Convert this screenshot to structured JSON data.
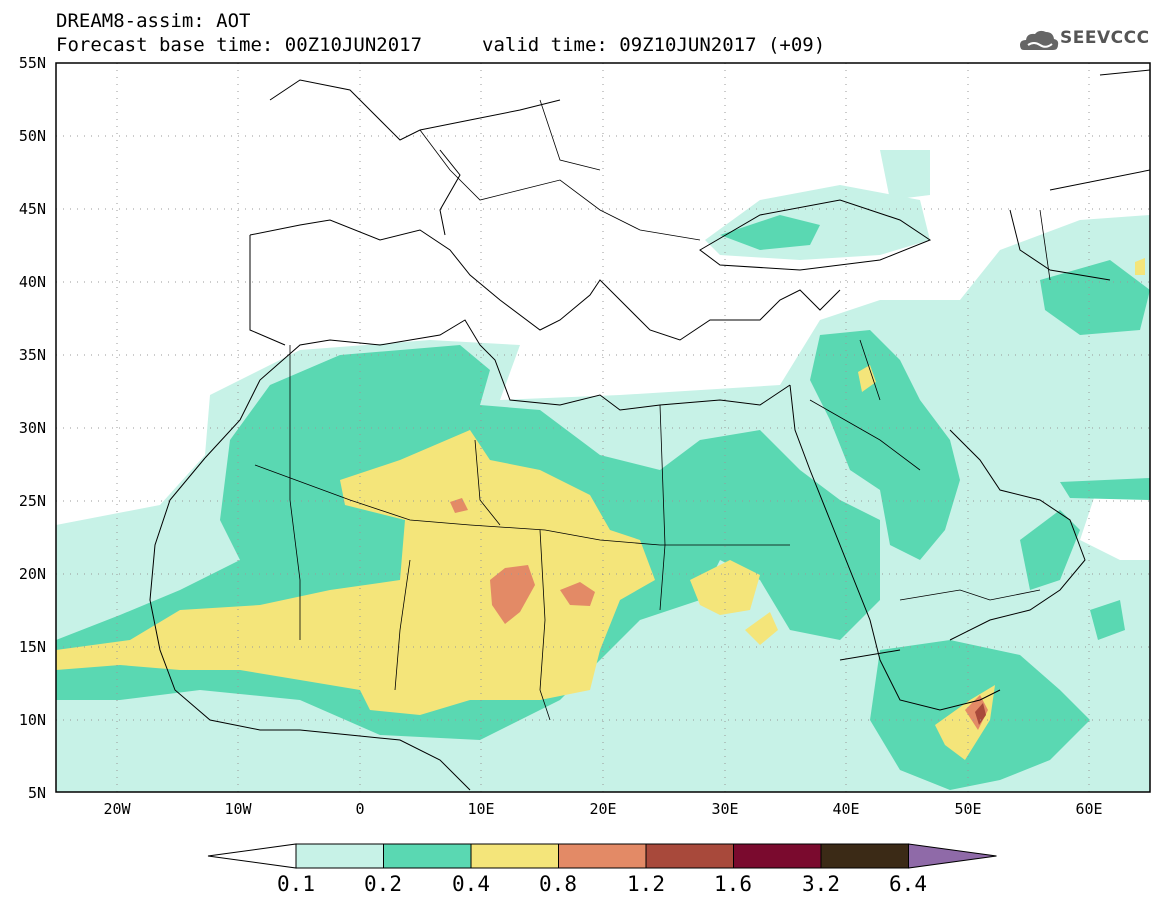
{
  "header": {
    "line1": "DREAM8-assim: AOT",
    "line2": "Forecast base time: 00Z10JUN2017",
    "line3": "valid time: 09Z10JUN2017 (+09)"
  },
  "logo": {
    "text": "SEEVCCC",
    "icon": "cloud-icon"
  },
  "map": {
    "lon_range": [
      -25,
      65
    ],
    "lat_range": [
      5,
      55
    ],
    "lat_labels": [
      "55N",
      "50N",
      "45N",
      "40N",
      "35N",
      "30N",
      "25N",
      "20N",
      "15N",
      "10N",
      "5N"
    ],
    "lat_values": [
      55,
      50,
      45,
      40,
      35,
      30,
      25,
      20,
      15,
      10,
      5
    ],
    "lon_labels": [
      "20W",
      "10W",
      "0",
      "10E",
      "20E",
      "30E",
      "40E",
      "50E",
      "60E"
    ],
    "lon_values": [
      -20,
      -10,
      0,
      10,
      20,
      30,
      40,
      50,
      60
    ],
    "gridlines": "dotted"
  },
  "colorbar": {
    "labels": [
      "0.1",
      "0.2",
      "0.4",
      "0.8",
      "1.2",
      "1.6",
      "3.2",
      "6.4"
    ],
    "colors": [
      "#ffffff",
      "#c7f2e7",
      "#5ad8b2",
      "#f4e57a",
      "#e38a66",
      "#a8493b",
      "#7a0a2e",
      "#3b2a16",
      "#8f6aa8"
    ]
  }
}
